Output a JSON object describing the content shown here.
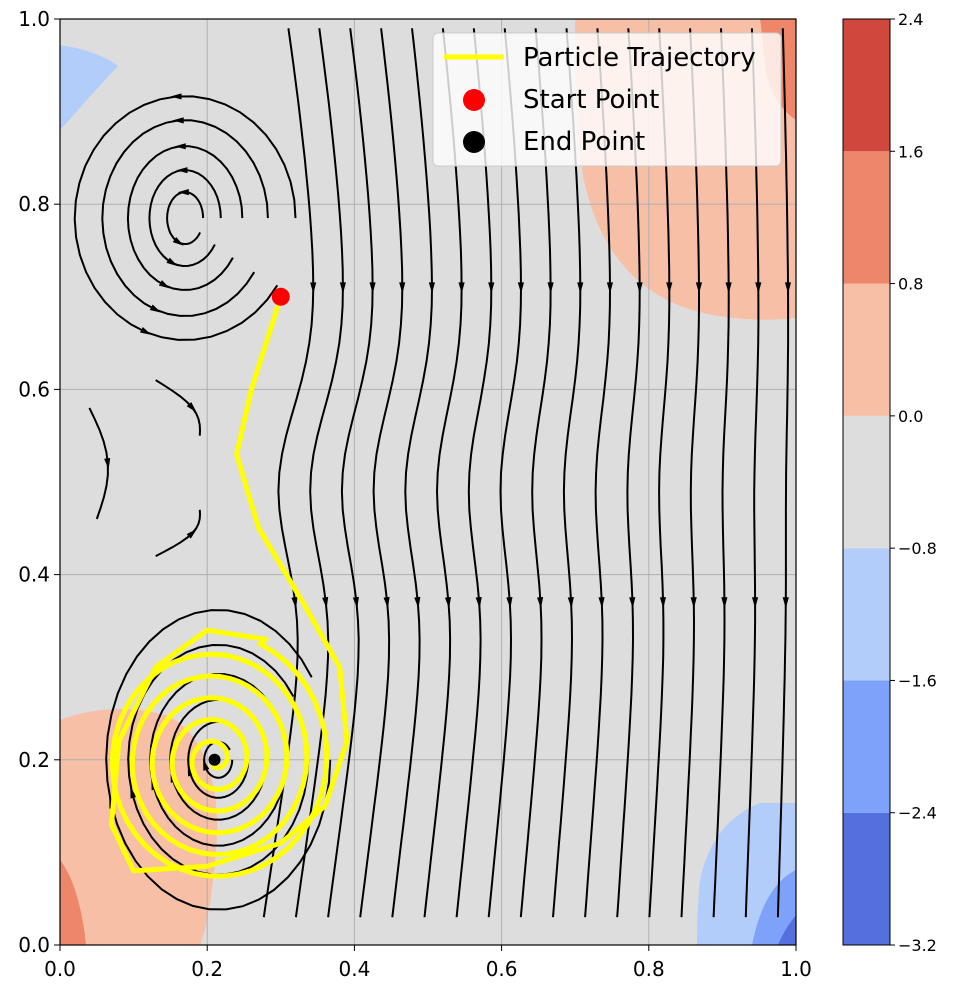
{
  "chart_data": {
    "type": "contour-streamplot",
    "title": "",
    "xlabel": "",
    "ylabel": "",
    "xlim": [
      0.0,
      1.0
    ],
    "ylim": [
      0.0,
      1.0
    ],
    "x_ticks": [
      "0.0",
      "0.2",
      "0.4",
      "0.6",
      "0.8",
      "1.0"
    ],
    "y_ticks": [
      "0.0",
      "0.2",
      "0.4",
      "0.6",
      "0.8",
      "1.0"
    ],
    "grid": true,
    "legend_position": "top-right",
    "legend": [
      {
        "label": "Particle Trajectory",
        "color": "#ffff00",
        "marker": "line"
      },
      {
        "label": "Start Point",
        "color": "#ff0000",
        "marker": "circle"
      },
      {
        "label": "End Point",
        "color": "#000000",
        "marker": "circle"
      }
    ],
    "start_point": {
      "x": 0.3,
      "y": 0.7
    },
    "end_point": {
      "x": 0.21,
      "y": 0.2
    },
    "colorbar": {
      "colormap": "coolwarm",
      "ticks": [
        "−3.2",
        "−2.4",
        "−1.6",
        "−0.8",
        "0.0",
        "0.8",
        "1.6",
        "2.4"
      ],
      "tick_values": [
        -3.2,
        -2.4,
        -1.6,
        -0.8,
        0.0,
        0.8,
        1.6,
        2.4
      ],
      "levels": [
        {
          "from": -3.2,
          "to": -2.4,
          "color": "#5470de"
        },
        {
          "from": -2.4,
          "to": -1.6,
          "color": "#7ea1fa"
        },
        {
          "from": -1.6,
          "to": -0.8,
          "color": "#b3cdfb"
        },
        {
          "from": -0.8,
          "to": 0.0,
          "color": "#dddddd"
        },
        {
          "from": 0.0,
          "to": 0.8,
          "color": "#f6bfa6"
        },
        {
          "from": 0.8,
          "to": 1.6,
          "color": "#ee8669"
        },
        {
          "from": 1.6,
          "to": 2.4,
          "color": "#d0473d"
        }
      ]
    },
    "vortices": [
      {
        "x": 0.17,
        "y": 0.79,
        "sense": "clockwise"
      },
      {
        "x": 0.21,
        "y": 0.2,
        "sense": "counterclockwise"
      }
    ],
    "colors": {
      "stream": "#000000",
      "grid": "#b0b0b0",
      "trajectory": "#ffff00"
    }
  }
}
